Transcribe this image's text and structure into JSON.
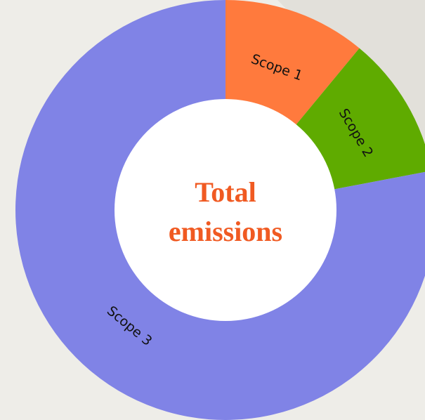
{
  "chart_data": {
    "type": "donut",
    "center_label": [
      "Total",
      "emissions"
    ],
    "categories": [
      "Scope 1",
      "Scope 2",
      "Scope 3"
    ],
    "values": [
      11,
      11,
      78
    ],
    "colors": [
      "#ff7a3d",
      "#5fab00",
      "#8083e6"
    ]
  }
}
